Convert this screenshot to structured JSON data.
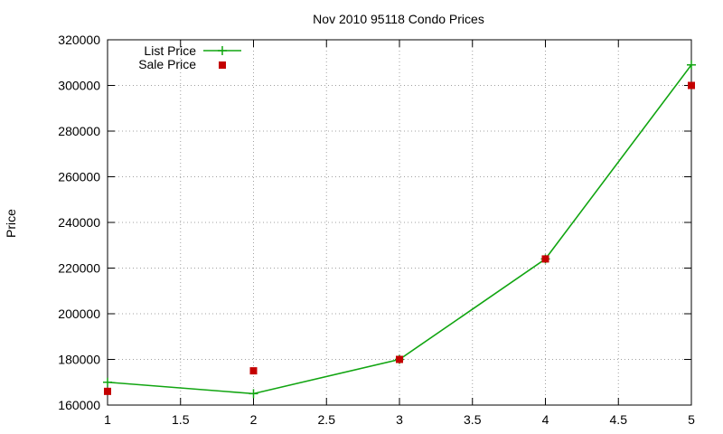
{
  "chart_data": {
    "type": "line",
    "title": "Nov 2010 95118 Condo Prices",
    "xlabel": "",
    "ylabel": "Price",
    "xlim": [
      1,
      5
    ],
    "ylim": [
      160000,
      320000
    ],
    "xticks": [
      1,
      1.5,
      2,
      2.5,
      3,
      3.5,
      4,
      4.5,
      5
    ],
    "yticks": [
      160000,
      180000,
      200000,
      220000,
      240000,
      260000,
      280000,
      300000,
      320000
    ],
    "grid": true,
    "legend_position": "top-left",
    "series": [
      {
        "name": "List Price",
        "style": "linespoints",
        "marker": "plus",
        "color": "#11a511",
        "x": [
          1,
          2,
          3,
          4,
          5
        ],
        "y": [
          170000,
          165000,
          180000,
          224000,
          309000
        ]
      },
      {
        "name": "Sale Price",
        "style": "points",
        "marker": "square",
        "color": "#c40000",
        "x": [
          1,
          2,
          3,
          4,
          5
        ],
        "y": [
          166000,
          175000,
          180000,
          224000,
          300000
        ]
      }
    ]
  }
}
